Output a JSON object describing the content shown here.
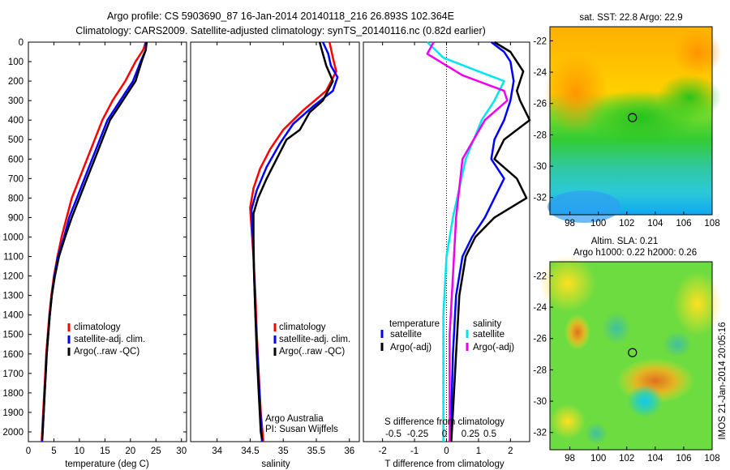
{
  "header": {
    "line1": "Argo profile: CS 5903690_87 16-Jan-2014 20140118_216 26.893S 102.364E",
    "line2": "Climatology: CARS2009. Satellite-adjusted climatology: synTS_20140116.nc (0.82d earlier)"
  },
  "colors": {
    "climatology": "#ff0000",
    "satellite": "#0000ff",
    "argo": "#000000",
    "cyan": "#00e5ee",
    "magenta": "#ee00ee"
  },
  "chart_data": [
    {
      "id": "temperature",
      "type": "line",
      "xlabel": "temperature (deg C)",
      "xlim": [
        0,
        31
      ],
      "xticks": [
        0,
        5,
        10,
        15,
        20,
        25,
        30
      ],
      "ylim": [
        0,
        2050
      ],
      "yticks": [
        0,
        100,
        200,
        300,
        400,
        500,
        600,
        700,
        800,
        900,
        1000,
        1100,
        1200,
        1300,
        1400,
        1500,
        1600,
        1700,
        1800,
        1900,
        2000
      ],
      "legend": [
        "climatology",
        "satellite-adj. clim.",
        "Argo(..raw -QC)"
      ],
      "series": [
        {
          "name": "climatology",
          "color": "#ff0000",
          "points": [
            [
              23,
              0
            ],
            [
              22.5,
              40
            ],
            [
              21,
              100
            ],
            [
              19,
              200
            ],
            [
              16.5,
              300
            ],
            [
              14.5,
              400
            ],
            [
              13,
              500
            ],
            [
              11.5,
              600
            ],
            [
              10,
              700
            ],
            [
              8.5,
              800
            ],
            [
              7.5,
              900
            ],
            [
              6.5,
              1000
            ],
            [
              5.7,
              1100
            ],
            [
              5,
              1200
            ],
            [
              4.5,
              1300
            ],
            [
              4.1,
              1400
            ],
            [
              3.8,
              1500
            ],
            [
              3.5,
              1600
            ],
            [
              3.3,
              1700
            ],
            [
              3.1,
              1800
            ],
            [
              2.9,
              1900
            ],
            [
              2.7,
              2000
            ],
            [
              2.6,
              2050
            ]
          ]
        },
        {
          "name": "satellite-adj. clim.",
          "color": "#0000ff",
          "points": [
            [
              23,
              0
            ],
            [
              23,
              40
            ],
            [
              22,
              100
            ],
            [
              20.5,
              200
            ],
            [
              18,
              300
            ],
            [
              15.5,
              400
            ],
            [
              14,
              500
            ],
            [
              12.5,
              600
            ],
            [
              11,
              700
            ],
            [
              9.5,
              800
            ],
            [
              8,
              900
            ],
            [
              7,
              1000
            ],
            [
              5.8,
              1100
            ],
            [
              5.1,
              1200
            ],
            [
              4.6,
              1300
            ],
            [
              4.2,
              1400
            ],
            [
              3.9,
              1500
            ],
            [
              3.6,
              1600
            ],
            [
              3.4,
              1700
            ],
            [
              3.2,
              1800
            ],
            [
              3.0,
              1900
            ],
            [
              2.8,
              2000
            ],
            [
              2.7,
              2050
            ]
          ]
        },
        {
          "name": "Argo(..raw -QC)",
          "color": "#000000",
          "points": [
            [
              23.2,
              0
            ],
            [
              23,
              40
            ],
            [
              22.2,
              100
            ],
            [
              21,
              200
            ],
            [
              18.5,
              300
            ],
            [
              16,
              400
            ],
            [
              14.5,
              500
            ],
            [
              13,
              600
            ],
            [
              11.5,
              700
            ],
            [
              10,
              800
            ],
            [
              8.5,
              900
            ],
            [
              7.2,
              1000
            ],
            [
              6,
              1100
            ],
            [
              5.2,
              1200
            ],
            [
              4.6,
              1300
            ],
            [
              4.2,
              1400
            ],
            [
              3.9,
              1500
            ],
            [
              3.6,
              1600
            ],
            [
              3.4,
              1700
            ],
            [
              3.2,
              1800
            ],
            [
              3.0,
              1900
            ],
            [
              2.8,
              2000
            ],
            [
              2.7,
              2040
            ]
          ]
        }
      ]
    },
    {
      "id": "salinity",
      "type": "line",
      "xlabel": "salinity",
      "xlim": [
        33.6,
        36.15
      ],
      "xticks": [
        34,
        34.5,
        35,
        35.5,
        36
      ],
      "ylim": [
        0,
        2050
      ],
      "legend": [
        "climatology",
        "satellite-adj. clim.",
        "Argo(..raw -QC)"
      ],
      "annotation": [
        "Argo Australia",
        "PI: Susan Wijffels"
      ],
      "series": [
        {
          "name": "climatology",
          "color": "#ff0000",
          "points": [
            [
              35.7,
              0
            ],
            [
              35.75,
              80
            ],
            [
              35.8,
              150
            ],
            [
              35.65,
              250
            ],
            [
              35.3,
              350
            ],
            [
              35.0,
              450
            ],
            [
              34.8,
              550
            ],
            [
              34.65,
              650
            ],
            [
              34.55,
              750
            ],
            [
              34.5,
              850
            ],
            [
              34.52,
              950
            ],
            [
              34.55,
              1100
            ],
            [
              34.58,
              1300
            ],
            [
              34.6,
              1500
            ],
            [
              34.63,
              1700
            ],
            [
              34.66,
              1900
            ],
            [
              34.7,
              2050
            ]
          ]
        },
        {
          "name": "satellite-adj. clim.",
          "color": "#0000ff",
          "points": [
            [
              35.6,
              0
            ],
            [
              35.68,
              60
            ],
            [
              35.72,
              120
            ],
            [
              35.82,
              180
            ],
            [
              35.75,
              250
            ],
            [
              35.45,
              330
            ],
            [
              35.15,
              420
            ],
            [
              34.95,
              520
            ],
            [
              34.75,
              640
            ],
            [
              34.6,
              760
            ],
            [
              34.52,
              860
            ],
            [
              34.54,
              1000
            ],
            [
              34.56,
              1200
            ],
            [
              34.58,
              1400
            ],
            [
              34.61,
              1600
            ],
            [
              34.64,
              1800
            ],
            [
              34.67,
              2000
            ],
            [
              34.68,
              2050
            ]
          ]
        },
        {
          "name": "Argo(..raw -QC)",
          "color": "#000000",
          "points": [
            [
              35.55,
              0
            ],
            [
              35.6,
              60
            ],
            [
              35.65,
              120
            ],
            [
              35.75,
              200
            ],
            [
              35.6,
              300
            ],
            [
              35.4,
              360
            ],
            [
              35.25,
              450
            ],
            [
              35.05,
              500
            ],
            [
              34.9,
              600
            ],
            [
              34.75,
              700
            ],
            [
              34.62,
              800
            ],
            [
              34.55,
              880
            ],
            [
              34.55,
              1000
            ],
            [
              34.56,
              1200
            ],
            [
              34.58,
              1400
            ],
            [
              34.6,
              1600
            ],
            [
              34.63,
              1800
            ],
            [
              34.66,
              2000
            ],
            [
              34.68,
              2040
            ]
          ]
        }
      ]
    },
    {
      "id": "difference",
      "type": "line",
      "xlabel": "T difference from climatology",
      "top_label": "S difference from climatology",
      "xlim": [
        -2.6,
        2.6
      ],
      "xticks": [
        -2,
        -1,
        0,
        1,
        2
      ],
      "top_ticks": [
        "-0.5",
        "-0.25",
        "0",
        "0.25",
        "0.5"
      ],
      "ylim": [
        0,
        2050
      ],
      "legend_left": [
        "temperature",
        "satellite",
        "Argo(-adj)"
      ],
      "legend_right": [
        "salinity",
        "satellite",
        "Argo(-adj)"
      ],
      "series": [
        {
          "name": "temperature satellite",
          "color": "#0000ff",
          "points": [
            [
              1.4,
              0
            ],
            [
              1.8,
              50
            ],
            [
              2.0,
              100
            ],
            [
              2.1,
              200
            ],
            [
              2.0,
              300
            ],
            [
              1.8,
              400
            ],
            [
              1.5,
              500
            ],
            [
              1.4,
              600
            ],
            [
              1.8,
              700
            ],
            [
              1.5,
              800
            ],
            [
              1.2,
              900
            ],
            [
              0.8,
              1000
            ],
            [
              0.5,
              1100
            ],
            [
              0.3,
              1300
            ],
            [
              0.2,
              1600
            ],
            [
              0.15,
              1900
            ],
            [
              0.1,
              2050
            ]
          ]
        },
        {
          "name": "temperature Argo(-adj)",
          "color": "#000000",
          "points": [
            [
              1.5,
              0
            ],
            [
              2.0,
              50
            ],
            [
              2.4,
              150
            ],
            [
              2.2,
              250
            ],
            [
              2.3,
              300
            ],
            [
              2.6,
              400
            ],
            [
              1.8,
              500
            ],
            [
              1.5,
              600
            ],
            [
              2.2,
              700
            ],
            [
              2.5,
              800
            ],
            [
              1.5,
              900
            ],
            [
              0.9,
              1000
            ],
            [
              0.6,
              1100
            ],
            [
              0.4,
              1300
            ],
            [
              0.3,
              1600
            ],
            [
              0.2,
              1900
            ],
            [
              0.15,
              2050
            ]
          ]
        },
        {
          "name": "salinity satellite",
          "color": "#00e5ee",
          "points": [
            [
              -0.6,
              0
            ],
            [
              -0.1,
              80
            ],
            [
              1.0,
              150
            ],
            [
              1.8,
              200
            ],
            [
              1.5,
              300
            ],
            [
              1.1,
              400
            ],
            [
              0.6,
              600
            ],
            [
              0.2,
              900
            ],
            [
              0.0,
              1100
            ],
            [
              -0.1,
              1400
            ],
            [
              -0.1,
              2050
            ]
          ]
        },
        {
          "name": "salinity Argo(-adj)",
          "color": "#ee00ee",
          "points": [
            [
              -0.4,
              0
            ],
            [
              -0.6,
              60
            ],
            [
              0.5,
              170
            ],
            [
              1.8,
              250
            ],
            [
              1.9,
              300
            ],
            [
              1.2,
              400
            ],
            [
              0.5,
              600
            ],
            [
              0.3,
              900
            ],
            [
              0.2,
              1200
            ],
            [
              0.1,
              1500
            ],
            [
              0.1,
              2050
            ]
          ]
        }
      ]
    }
  ],
  "maps": [
    {
      "id": "sst",
      "title": "sat. SST: 22.8  Argo: 22.9",
      "xticks": [
        "98",
        "100",
        "102",
        "104",
        "106",
        "108"
      ],
      "yticks": [
        "-22",
        "-24",
        "-26",
        "-28",
        "-30",
        "-32"
      ],
      "argo_lon": 102.4,
      "argo_lat": -26.9
    },
    {
      "id": "sla",
      "title1": "Altim. SLA: 0.21",
      "title2": "Argo h1000: 0.22  h2000: 0.26",
      "xticks": [
        "98",
        "100",
        "102",
        "104",
        "106",
        "108"
      ],
      "yticks": [
        "-22",
        "-24",
        "-26",
        "-28",
        "-30",
        "-32"
      ],
      "argo_lon": 102.4,
      "argo_lat": -26.9
    }
  ],
  "stamp": "IMOS 21-Jan-2014 20:05:16"
}
